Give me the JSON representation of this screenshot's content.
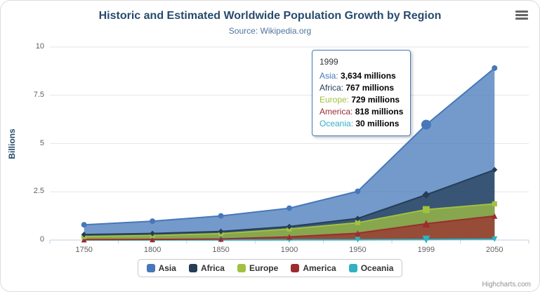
{
  "chart_data": {
    "type": "area",
    "stacking": "normal",
    "title": "Historic and Estimated Worldwide Population Growth by Region",
    "subtitle": "Source: Wikipedia.org",
    "categories": [
      "1750",
      "1800",
      "1850",
      "1900",
      "1950",
      "1999",
      "2050"
    ],
    "series": [
      {
        "name": "Asia",
        "color": "#4678b9",
        "marker": "circle",
        "values": [
          502,
          635,
          809,
          947,
          1402,
          3634,
          5268
        ]
      },
      {
        "name": "Africa",
        "color": "#243e58",
        "marker": "diamond",
        "values": [
          106,
          107,
          111,
          133,
          221,
          767,
          1766
        ]
      },
      {
        "name": "Europe",
        "color": "#a2c140",
        "marker": "square",
        "values": [
          163,
          203,
          276,
          408,
          547,
          729,
          628
        ]
      },
      {
        "name": "America",
        "color": "#9b2d30",
        "marker": "triangle",
        "values": [
          18,
          31,
          54,
          156,
          339,
          818,
          1201
        ]
      },
      {
        "name": "Oceania",
        "color": "#30b1c4",
        "marker": "triangle-down",
        "values": [
          2,
          2,
          2,
          6,
          13,
          30,
          46
        ]
      }
    ],
    "values_unit": "millions",
    "xlabel": "",
    "ylabel": "Billions",
    "ylim": [
      0,
      10
    ],
    "yticks": [
      0,
      2.5,
      5,
      7.5,
      10
    ],
    "grid": true,
    "legend_position": "bottom"
  },
  "tooltip": {
    "visible": true,
    "category": "1999",
    "hover_index": 5,
    "value_suffix": " millions"
  },
  "credits": {
    "label": "Highcharts.com"
  }
}
